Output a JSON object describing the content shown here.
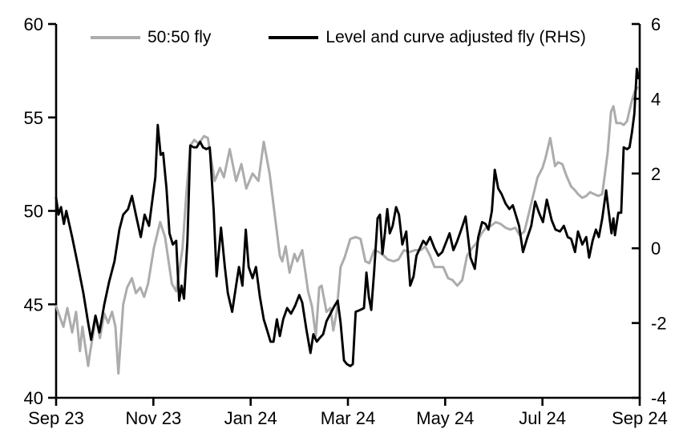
{
  "figure": {
    "background": "#ffffff",
    "text_color": "#000000"
  },
  "chart_data": {
    "type": "line",
    "title": "",
    "xlabel": "",
    "ylabel_left": "",
    "ylabel_right": "",
    "grid": false,
    "legend_position": "top",
    "x_axis": {
      "unit": "months since Sep 2023",
      "range": [
        0,
        12
      ],
      "tick_positions": [
        0,
        2,
        4,
        6,
        8,
        10,
        12
      ],
      "tick_labels": [
        "Sep 23",
        "Nov 23",
        "Jan 24",
        "Mar 24",
        "May 24",
        "Jul 24",
        "Sep 24"
      ]
    },
    "left_axis": {
      "range": [
        40,
        60
      ],
      "tick_values": [
        40,
        45,
        50,
        55,
        60
      ],
      "tick_labels": [
        "40",
        "45",
        "50",
        "55",
        "60"
      ]
    },
    "right_axis": {
      "range": [
        -4,
        6
      ],
      "tick_values": [
        -4,
        -2,
        0,
        2,
        4,
        6
      ],
      "tick_labels": [
        "-4",
        "-2",
        "0",
        "2",
        "4",
        "6"
      ]
    },
    "series": [
      {
        "name": "50:50 fly",
        "axis": "left",
        "color": "#acacac",
        "stroke_width": 3,
        "points": [
          [
            0.0,
            44.9
          ],
          [
            0.08,
            44.3
          ],
          [
            0.15,
            43.8
          ],
          [
            0.23,
            44.8
          ],
          [
            0.33,
            43.5
          ],
          [
            0.41,
            44.6
          ],
          [
            0.49,
            42.5
          ],
          [
            0.54,
            43.8
          ],
          [
            0.66,
            41.7
          ],
          [
            0.69,
            42.3
          ],
          [
            0.82,
            44.3
          ],
          [
            0.9,
            43.2
          ],
          [
            0.99,
            44.5
          ],
          [
            1.07,
            44.0
          ],
          [
            1.15,
            44.6
          ],
          [
            1.22,
            43.8
          ],
          [
            1.28,
            41.3
          ],
          [
            1.38,
            45.0
          ],
          [
            1.46,
            45.9
          ],
          [
            1.56,
            46.4
          ],
          [
            1.64,
            45.6
          ],
          [
            1.73,
            45.9
          ],
          [
            1.81,
            45.4
          ],
          [
            1.89,
            46.1
          ],
          [
            2.01,
            48.0
          ],
          [
            2.14,
            49.4
          ],
          [
            2.24,
            48.6
          ],
          [
            2.38,
            46.1
          ],
          [
            2.47,
            45.7
          ],
          [
            2.6,
            48.0
          ],
          [
            2.68,
            51.0
          ],
          [
            2.76,
            53.5
          ],
          [
            2.84,
            53.8
          ],
          [
            2.93,
            53.6
          ],
          [
            3.04,
            54.0
          ],
          [
            3.12,
            53.9
          ],
          [
            3.26,
            51.6
          ],
          [
            3.37,
            52.3
          ],
          [
            3.45,
            51.8
          ],
          [
            3.57,
            53.3
          ],
          [
            3.7,
            51.6
          ],
          [
            3.81,
            52.5
          ],
          [
            3.91,
            51.2
          ],
          [
            4.04,
            52.0
          ],
          [
            4.16,
            51.6
          ],
          [
            4.27,
            53.7
          ],
          [
            4.39,
            52.0
          ],
          [
            4.5,
            49.7
          ],
          [
            4.6,
            47.6
          ],
          [
            4.65,
            47.3
          ],
          [
            4.72,
            48.1
          ],
          [
            4.8,
            46.7
          ],
          [
            4.9,
            47.7
          ],
          [
            4.96,
            47.3
          ],
          [
            5.06,
            47.9
          ],
          [
            5.18,
            45.7
          ],
          [
            5.26,
            44.9
          ],
          [
            5.34,
            43.3
          ],
          [
            5.41,
            45.9
          ],
          [
            5.46,
            46.0
          ],
          [
            5.56,
            44.6
          ],
          [
            5.64,
            44.8
          ],
          [
            5.7,
            43.6
          ],
          [
            5.77,
            44.6
          ],
          [
            5.85,
            47.0
          ],
          [
            5.93,
            47.5
          ],
          [
            6.05,
            48.5
          ],
          [
            6.16,
            48.6
          ],
          [
            6.26,
            48.5
          ],
          [
            6.36,
            47.3
          ],
          [
            6.44,
            47.2
          ],
          [
            6.54,
            47.9
          ],
          [
            6.64,
            47.8
          ],
          [
            6.74,
            47.6
          ],
          [
            6.82,
            47.4
          ],
          [
            6.94,
            47.3
          ],
          [
            7.04,
            47.4
          ],
          [
            7.15,
            47.9
          ],
          [
            7.27,
            47.8
          ],
          [
            7.38,
            47.9
          ],
          [
            7.5,
            47.9
          ],
          [
            7.59,
            48.1
          ],
          [
            7.69,
            47.6
          ],
          [
            7.78,
            47.0
          ],
          [
            7.87,
            47.0
          ],
          [
            7.96,
            47.0
          ],
          [
            8.06,
            46.4
          ],
          [
            8.15,
            46.3
          ],
          [
            8.25,
            46.0
          ],
          [
            8.35,
            46.3
          ],
          [
            8.45,
            47.6
          ],
          [
            8.55,
            48.0
          ],
          [
            8.65,
            48.3
          ],
          [
            8.75,
            48.8
          ],
          [
            8.84,
            49.1
          ],
          [
            8.94,
            49.2
          ],
          [
            9.04,
            49.4
          ],
          [
            9.14,
            49.3
          ],
          [
            9.24,
            49.1
          ],
          [
            9.34,
            49.0
          ],
          [
            9.44,
            49.1
          ],
          [
            9.53,
            48.7
          ],
          [
            9.63,
            48.9
          ],
          [
            9.77,
            50.4
          ],
          [
            9.9,
            51.8
          ],
          [
            10.0,
            52.3
          ],
          [
            10.06,
            52.8
          ],
          [
            10.16,
            53.9
          ],
          [
            10.26,
            52.4
          ],
          [
            10.32,
            52.6
          ],
          [
            10.41,
            52.5
          ],
          [
            10.49,
            51.9
          ],
          [
            10.59,
            51.3
          ],
          [
            10.67,
            51.1
          ],
          [
            10.73,
            50.9
          ],
          [
            10.82,
            50.7
          ],
          [
            10.9,
            50.8
          ],
          [
            10.98,
            51.0
          ],
          [
            11.06,
            50.9
          ],
          [
            11.15,
            50.8
          ],
          [
            11.23,
            50.9
          ],
          [
            11.34,
            53.1
          ],
          [
            11.41,
            55.3
          ],
          [
            11.46,
            55.6
          ],
          [
            11.52,
            54.7
          ],
          [
            11.61,
            54.7
          ],
          [
            11.67,
            54.6
          ],
          [
            11.74,
            54.8
          ],
          [
            11.8,
            55.5
          ],
          [
            11.85,
            56.0
          ],
          [
            11.9,
            56.4
          ],
          [
            11.95,
            56.6
          ]
        ]
      },
      {
        "name": "Level and curve adjusted fly (RHS)",
        "axis": "right",
        "color": "#000000",
        "stroke_width": 2.9,
        "points": [
          [
            0.0,
            1.35
          ],
          [
            0.05,
            0.9
          ],
          [
            0.1,
            1.1
          ],
          [
            0.16,
            0.65
          ],
          [
            0.21,
            1.0
          ],
          [
            0.33,
            0.3
          ],
          [
            0.44,
            -0.4
          ],
          [
            0.56,
            -1.2
          ],
          [
            0.66,
            -2.0
          ],
          [
            0.72,
            -2.45
          ],
          [
            0.81,
            -1.8
          ],
          [
            0.89,
            -2.25
          ],
          [
            0.99,
            -1.5
          ],
          [
            1.09,
            -0.9
          ],
          [
            1.2,
            -0.35
          ],
          [
            1.3,
            0.5
          ],
          [
            1.38,
            0.9
          ],
          [
            1.48,
            1.05
          ],
          [
            1.56,
            1.4
          ],
          [
            1.64,
            0.9
          ],
          [
            1.74,
            0.3
          ],
          [
            1.82,
            0.9
          ],
          [
            1.91,
            0.6
          ],
          [
            1.97,
            1.2
          ],
          [
            2.04,
            1.9
          ],
          [
            2.09,
            3.3
          ],
          [
            2.15,
            2.5
          ],
          [
            2.2,
            2.55
          ],
          [
            2.27,
            1.6
          ],
          [
            2.33,
            0.4
          ],
          [
            2.4,
            0.1
          ],
          [
            2.47,
            0.2
          ],
          [
            2.53,
            -1.4
          ],
          [
            2.58,
            -1.0
          ],
          [
            2.63,
            -1.35
          ],
          [
            2.7,
            0.2
          ],
          [
            2.76,
            2.75
          ],
          [
            2.83,
            2.7
          ],
          [
            2.89,
            2.7
          ],
          [
            2.96,
            2.85
          ],
          [
            3.02,
            2.7
          ],
          [
            3.09,
            2.65
          ],
          [
            3.16,
            2.7
          ],
          [
            3.24,
            1.0
          ],
          [
            3.3,
            -0.75
          ],
          [
            3.39,
            0.55
          ],
          [
            3.47,
            -0.5
          ],
          [
            3.53,
            -1.2
          ],
          [
            3.62,
            -1.7
          ],
          [
            3.7,
            -1.0
          ],
          [
            3.76,
            -0.5
          ],
          [
            3.83,
            -1.0
          ],
          [
            3.9,
            0.5
          ],
          [
            3.96,
            -0.5
          ],
          [
            4.04,
            -0.8
          ],
          [
            4.11,
            -0.5
          ],
          [
            4.19,
            -1.3
          ],
          [
            4.27,
            -1.9
          ],
          [
            4.34,
            -2.2
          ],
          [
            4.41,
            -2.5
          ],
          [
            4.47,
            -2.5
          ],
          [
            4.54,
            -1.9
          ],
          [
            4.6,
            -2.35
          ],
          [
            4.67,
            -1.9
          ],
          [
            4.75,
            -1.6
          ],
          [
            4.83,
            -1.75
          ],
          [
            4.91,
            -1.55
          ],
          [
            5.0,
            -1.25
          ],
          [
            5.06,
            -1.45
          ],
          [
            5.15,
            -2.2
          ],
          [
            5.23,
            -2.8
          ],
          [
            5.29,
            -2.3
          ],
          [
            5.36,
            -2.5
          ],
          [
            5.42,
            -2.4
          ],
          [
            5.49,
            -2.3
          ],
          [
            5.56,
            -1.95
          ],
          [
            5.64,
            -1.75
          ],
          [
            5.72,
            -1.55
          ],
          [
            5.79,
            -1.4
          ],
          [
            5.85,
            -2.0
          ],
          [
            5.92,
            -3.0
          ],
          [
            5.98,
            -3.1
          ],
          [
            6.05,
            -3.15
          ],
          [
            6.1,
            -3.1
          ],
          [
            6.16,
            -1.7
          ],
          [
            6.25,
            -1.65
          ],
          [
            6.33,
            -1.6
          ],
          [
            6.38,
            -0.65
          ],
          [
            6.43,
            -1.3
          ],
          [
            6.48,
            -1.65
          ],
          [
            6.54,
            -0.6
          ],
          [
            6.61,
            0.8
          ],
          [
            6.66,
            0.9
          ],
          [
            6.71,
            -0.15
          ],
          [
            6.76,
            0.4
          ],
          [
            6.81,
            1.05
          ],
          [
            6.86,
            0.4
          ],
          [
            6.92,
            0.6
          ],
          [
            6.99,
            1.1
          ],
          [
            7.05,
            0.9
          ],
          [
            7.12,
            0.1
          ],
          [
            7.2,
            0.45
          ],
          [
            7.28,
            -1.0
          ],
          [
            7.35,
            -0.75
          ],
          [
            7.41,
            -0.2
          ],
          [
            7.48,
            0.0
          ],
          [
            7.55,
            0.2
          ],
          [
            7.61,
            0.1
          ],
          [
            7.69,
            0.3
          ],
          [
            7.78,
            0.0
          ],
          [
            7.86,
            -0.2
          ],
          [
            7.94,
            -0.1
          ],
          [
            8.09,
            0.4
          ],
          [
            8.17,
            -0.05
          ],
          [
            8.25,
            0.2
          ],
          [
            8.33,
            0.5
          ],
          [
            8.42,
            0.85
          ],
          [
            8.52,
            -0.25
          ],
          [
            8.61,
            -0.55
          ],
          [
            8.68,
            0.3
          ],
          [
            8.76,
            0.7
          ],
          [
            8.83,
            0.65
          ],
          [
            8.89,
            0.5
          ],
          [
            8.96,
            1.0
          ],
          [
            9.02,
            2.1
          ],
          [
            9.09,
            1.6
          ],
          [
            9.16,
            1.45
          ],
          [
            9.24,
            1.2
          ],
          [
            9.32,
            1.05
          ],
          [
            9.39,
            1.15
          ],
          [
            9.45,
            0.9
          ],
          [
            9.52,
            0.6
          ],
          [
            9.6,
            -0.1
          ],
          [
            9.68,
            0.25
          ],
          [
            9.77,
            0.6
          ],
          [
            9.85,
            1.25
          ],
          [
            9.93,
            0.95
          ],
          [
            10.01,
            0.7
          ],
          [
            10.09,
            1.3
          ],
          [
            10.19,
            0.75
          ],
          [
            10.27,
            0.5
          ],
          [
            10.36,
            0.45
          ],
          [
            10.44,
            0.6
          ],
          [
            10.52,
            0.3
          ],
          [
            10.59,
            0.25
          ],
          [
            10.67,
            -0.1
          ],
          [
            10.73,
            0.45
          ],
          [
            10.82,
            0.1
          ],
          [
            10.9,
            0.3
          ],
          [
            10.96,
            -0.25
          ],
          [
            11.03,
            0.2
          ],
          [
            11.1,
            0.5
          ],
          [
            11.16,
            0.3
          ],
          [
            11.23,
            0.8
          ],
          [
            11.31,
            1.55
          ],
          [
            11.36,
            1.0
          ],
          [
            11.42,
            0.4
          ],
          [
            11.46,
            0.8
          ],
          [
            11.49,
            0.35
          ],
          [
            11.56,
            0.95
          ],
          [
            11.62,
            0.95
          ],
          [
            11.67,
            2.7
          ],
          [
            11.74,
            2.65
          ],
          [
            11.79,
            2.7
          ],
          [
            11.84,
            3.1
          ],
          [
            11.89,
            3.6
          ],
          [
            11.94,
            4.8
          ],
          [
            11.97,
            4.55
          ]
        ]
      }
    ]
  }
}
